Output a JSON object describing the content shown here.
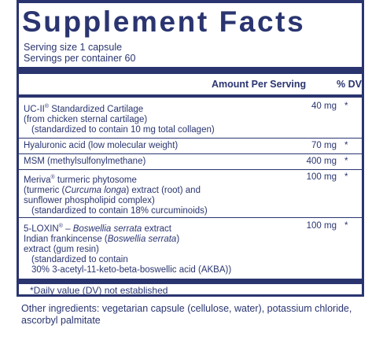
{
  "title": "Supplement Facts",
  "serving_size": "Serving size  1 capsule",
  "servings_per_container": "Servings per container  60",
  "header": {
    "amount": "Amount Per Serving",
    "dv": "% DV"
  },
  "rows": [
    {
      "lines": [
        [
          {
            "t": "UC-II"
          },
          {
            "t": "®",
            "sup": true
          },
          {
            "t": " Standardized Cartilage"
          }
        ],
        [
          {
            "t": "(from chicken sternal cartilage)"
          }
        ],
        [
          {
            "t": "(standardized to contain 10 mg total collagen)",
            "ind": true
          }
        ]
      ],
      "amount": "40 mg",
      "dv": "*"
    },
    {
      "lines": [
        [
          {
            "t": "Hyaluronic acid (low molecular weight)"
          }
        ]
      ],
      "amount": "70 mg",
      "dv": "*"
    },
    {
      "lines": [
        [
          {
            "t": "MSM (methylsulfonylmethane)"
          }
        ]
      ],
      "amount": "400 mg",
      "dv": "*"
    },
    {
      "lines": [
        [
          {
            "t": "Meriva"
          },
          {
            "t": "®",
            "sup": true
          },
          {
            "t": " turmeric phytosome"
          }
        ],
        [
          {
            "t": "(turmeric  ("
          },
          {
            "t": "Curcuma longa",
            "i": true
          },
          {
            "t": ") extract (root) and"
          }
        ],
        [
          {
            "t": "sunflower phospholipid complex)"
          }
        ],
        [
          {
            "t": "(standardized to contain 18% curcuminoids)",
            "ind": true
          }
        ]
      ],
      "amount": "100 mg",
      "dv": "*"
    },
    {
      "lines": [
        [
          {
            "t": "5-LOXIN"
          },
          {
            "t": "®",
            "sup": true
          },
          {
            "t": " – "
          },
          {
            "t": "Boswellia serrata",
            "i": true
          },
          {
            "t": " extract"
          }
        ],
        [
          {
            "t": "Indian frankincense ("
          },
          {
            "t": "Boswellia serrata",
            "i": true
          },
          {
            "t": ")"
          }
        ],
        [
          {
            "t": "extract (gum resin)"
          }
        ],
        [
          {
            "t": "(standardized to contain",
            "ind": true
          }
        ],
        [
          {
            "t": "30% 3-acetyl-11-keto-beta-boswellic acid (AKBA))",
            "ind": true
          }
        ]
      ],
      "amount": "100 mg",
      "dv": "*"
    }
  ],
  "footnote": "*Daily value (DV) not established",
  "other_ingredients": "Other ingredients: vegetarian capsule (cellulose, water), potassium chloride, ascorbyl palmitate",
  "colors": {
    "ink": "#2a3570",
    "background": "#ffffff"
  }
}
